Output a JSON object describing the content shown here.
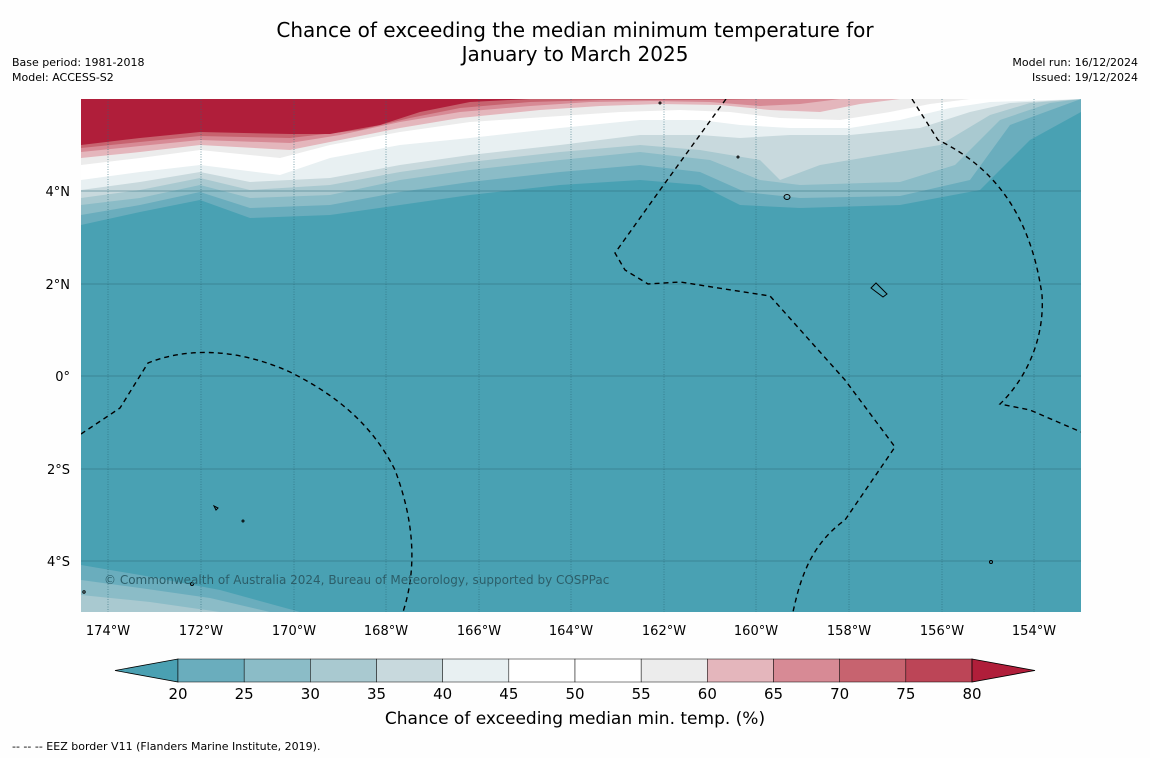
{
  "title_line1": "Chance of exceeding the median minimum temperature for",
  "title_line2": "January to March 2025",
  "meta_left": {
    "base_period": "Base period: 1981-2018",
    "model": "Model: ACCESS-S2"
  },
  "meta_right": {
    "model_run": "Model run: 16/12/2024",
    "issued": "Issued: 19/12/2024"
  },
  "map": {
    "lat_ticks": [
      "4°N",
      "2°N",
      "0°",
      "2°S",
      "4°S"
    ],
    "lon_ticks": [
      "174°W",
      "172°W",
      "170°W",
      "168°W",
      "166°W",
      "164°W",
      "162°W",
      "160°W",
      "158°W",
      "156°W",
      "154°W"
    ],
    "copyright": "© Commonwealth of Australia 2024, Bureau of Meteorology, supported by COSPPac"
  },
  "colorbar": {
    "ticks": [
      "20",
      "25",
      "30",
      "35",
      "40",
      "45",
      "50",
      "55",
      "60",
      "65",
      "70",
      "75",
      "80"
    ],
    "colors": [
      "#4aa0b2",
      "#6aadbd",
      "#8bbcc7",
      "#a9c9d0",
      "#c8d9dd",
      "#e8f0f2",
      "#ffffff",
      "#ffffff",
      "#ececec",
      "#e4b6bc",
      "#d78a95",
      "#c7636f",
      "#bc4557",
      "#b01e3a"
    ],
    "title": "Chance of exceeding median min. temp. (%)"
  },
  "footnote": "--  --  -- EEZ border V11 (Flanders Marine Institute, 2019)."
}
